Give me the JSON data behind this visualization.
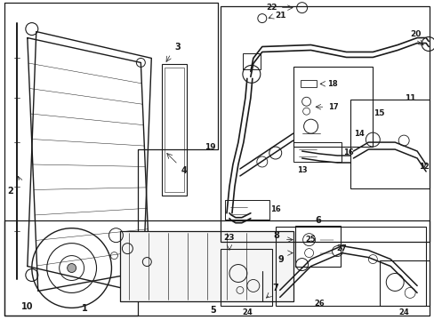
{
  "bg_color": "#ffffff",
  "line_color": "#1a1a1a",
  "lw": 0.7,
  "fontsize_label": 6.5,
  "fontsize_num": 6.0
}
